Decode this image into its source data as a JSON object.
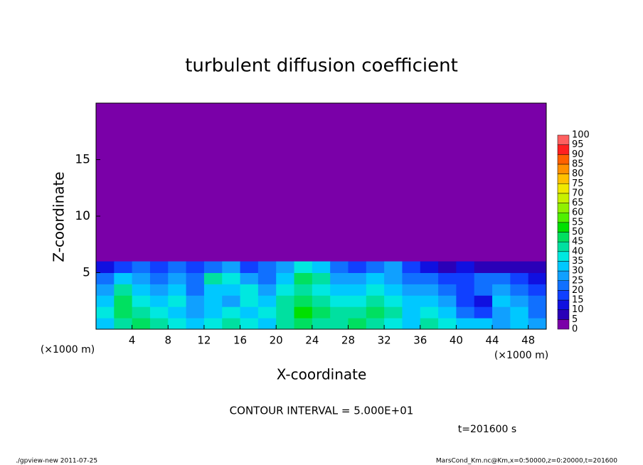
{
  "chart_data": {
    "type": "heatmap",
    "title": "turbulent diffusion coefficient",
    "x_label": "X-coordinate",
    "y_label": "Z-coordinate",
    "x_unit": "(×1000 m)",
    "y_unit": "(×1000 m)",
    "xlim": [
      0,
      50
    ],
    "ylim": [
      0,
      20
    ],
    "xticks": [
      4,
      8,
      12,
      16,
      20,
      24,
      28,
      32,
      36,
      40,
      44,
      48
    ],
    "yticks": [
      5,
      10,
      15
    ],
    "x": [
      1,
      3,
      5,
      7,
      9,
      11,
      13,
      15,
      17,
      19,
      21,
      23,
      25,
      27,
      29,
      31,
      33,
      35,
      37,
      39,
      41,
      43,
      45,
      47,
      49
    ],
    "y": [
      0.5,
      1.5,
      2.5,
      3.5,
      4.5,
      5.5
    ],
    "z": [
      [
        30,
        40,
        45,
        40,
        35,
        30,
        35,
        40,
        35,
        30,
        40,
        45,
        40,
        40,
        45,
        40,
        35,
        30,
        40,
        35,
        30,
        30,
        25,
        30,
        25
      ],
      [
        35,
        45,
        40,
        35,
        30,
        25,
        30,
        35,
        30,
        35,
        40,
        50,
        45,
        40,
        40,
        45,
        40,
        30,
        35,
        30,
        20,
        15,
        25,
        30,
        20
      ],
      [
        30,
        45,
        35,
        30,
        35,
        25,
        30,
        25,
        35,
        30,
        40,
        45,
        40,
        35,
        35,
        40,
        35,
        30,
        30,
        25,
        15,
        10,
        30,
        25,
        20
      ],
      [
        25,
        40,
        30,
        25,
        30,
        20,
        30,
        30,
        35,
        25,
        35,
        40,
        35,
        30,
        30,
        35,
        30,
        25,
        25,
        20,
        15,
        20,
        25,
        20,
        15
      ],
      [
        20,
        30,
        25,
        20,
        25,
        20,
        40,
        35,
        25,
        20,
        30,
        45,
        40,
        25,
        25,
        30,
        25,
        20,
        20,
        15,
        15,
        20,
        20,
        15,
        10
      ],
      [
        10,
        15,
        20,
        15,
        20,
        15,
        20,
        25,
        15,
        20,
        25,
        35,
        30,
        20,
        15,
        20,
        25,
        15,
        10,
        5,
        10,
        5,
        5,
        5,
        5
      ]
    ],
    "colorbar": {
      "levels": [
        0,
        5,
        10,
        15,
        20,
        25,
        30,
        35,
        40,
        45,
        50,
        55,
        60,
        65,
        70,
        75,
        80,
        85,
        90,
        95,
        100
      ],
      "colors": [
        "#7a00a8",
        "#2a00b8",
        "#1010e0",
        "#1040ff",
        "#1070ff",
        "#10a0ff",
        "#00c8ff",
        "#00e8e0",
        "#00e0a0",
        "#00e060",
        "#00e000",
        "#50f000",
        "#90f000",
        "#c8f000",
        "#f0e800",
        "#ffc000",
        "#ff9000",
        "#ff6000",
        "#ff2020",
        "#ff6060"
      ]
    },
    "contour_interval": "CONTOUR INTERVAL = 5.000E+01",
    "time": "t=201600 s",
    "footer_left": "./gpview-new   2011-07-25",
    "footer_right": "MarsCond_Km.nc@Km,x=0:50000,z=0:20000,t=201600"
  }
}
